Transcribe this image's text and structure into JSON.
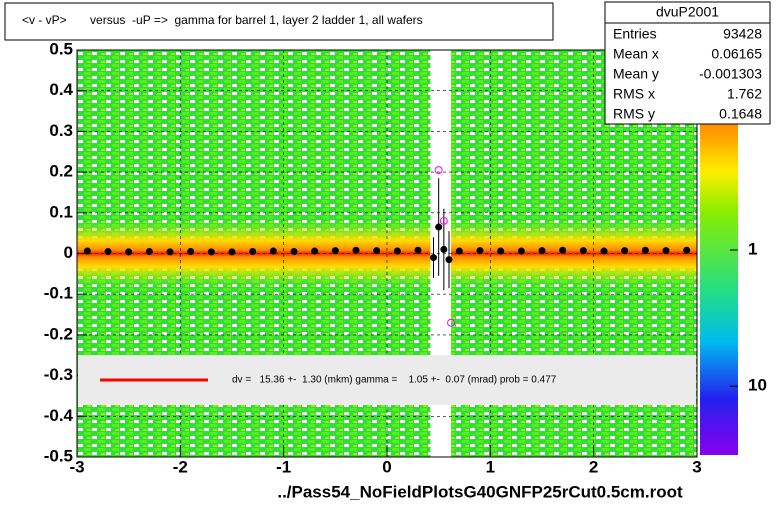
{
  "chart_data": {
    "type": "profile2d",
    "title": "<v - vP>       versus  -uP =>  gamma for barrel 1, layer 2 ladder 1, all wafers",
    "xlim": [
      -3,
      3
    ],
    "ylim": [
      -0.5,
      0.5
    ],
    "xticks": [
      -3,
      -2,
      -1,
      0,
      1,
      2,
      3
    ],
    "yticks": [
      -0.5,
      -0.4,
      -0.3,
      -0.2,
      -0.1,
      0,
      0.1,
      0.2,
      0.3,
      0.4,
      0.5
    ],
    "grid": true,
    "profile": {
      "color": "#000000",
      "x": [
        -2.9,
        -2.7,
        -2.5,
        -2.3,
        -2.1,
        -1.9,
        -1.7,
        -1.5,
        -1.3,
        -1.1,
        -0.9,
        -0.7,
        -0.5,
        -0.3,
        -0.1,
        0.1,
        0.3,
        0.45,
        0.5,
        0.55,
        0.6,
        0.7,
        0.9,
        1.1,
        1.3,
        1.5,
        1.7,
        1.9,
        2.1,
        2.3,
        2.5,
        2.7,
        2.9
      ],
      "values": [
        0.006,
        0.005,
        0.004,
        0.005,
        0.004,
        0.005,
        0.004,
        0.004,
        0.005,
        0.006,
        0.005,
        0.006,
        0.007,
        0.008,
        0.007,
        0.006,
        0.008,
        -0.01,
        0.065,
        0.01,
        -0.015,
        0.006,
        0.007,
        0.006,
        0.006,
        0.007,
        0.008,
        0.007,
        0.006,
        0.007,
        0.008,
        0.007,
        0.008
      ],
      "errors": [
        0.005,
        0.004,
        0.004,
        0.004,
        0.004,
        0.004,
        0.004,
        0.004,
        0.004,
        0.004,
        0.004,
        0.004,
        0.004,
        0.005,
        0.005,
        0.005,
        0.006,
        0.05,
        0.12,
        0.1,
        0.07,
        0.006,
        0.004,
        0.004,
        0.004,
        0.004,
        0.004,
        0.004,
        0.004,
        0.004,
        0.004,
        0.004,
        0.005
      ]
    },
    "profile_alt": {
      "color": "#ff00ff",
      "x": [
        0.5,
        0.55,
        0.62
      ],
      "values": [
        0.205,
        0.08,
        -0.17
      ]
    },
    "legend": {
      "line_color": "#ff0000",
      "text": "dv =   15.36 +-  1.30 (mkm) gamma =    1.05 +-  0.07 (mrad) prob = 0.477"
    },
    "zlog": true,
    "zlim": [
      0.034,
      32
    ],
    "zticks": [
      1,
      10
    ],
    "stats": {
      "title": "dvuP2001",
      "rows": [
        [
          "Entries",
          "93428"
        ],
        [
          "Mean x",
          "0.06165"
        ],
        [
          "Mean y",
          "-0.001303"
        ],
        [
          "RMS x",
          "1.762"
        ],
        [
          "RMS y",
          "0.1648"
        ]
      ]
    },
    "footer": "../Pass54_NoFieldPlotsG40GNFP25rCut0.5cm.root"
  }
}
